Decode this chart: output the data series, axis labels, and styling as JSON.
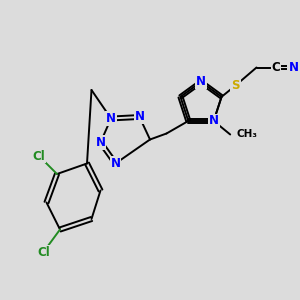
{
  "background_color": "#dcdcdc",
  "atom_colors": {
    "N": "#0000ff",
    "C": "#000000",
    "S": "#ccaa00",
    "Cl": "#228b22",
    "H": "#000000"
  },
  "bond_color": "#000000",
  "bond_lw": 1.4,
  "figsize": [
    3.0,
    3.0
  ],
  "dpi": 100,
  "xlim": [
    0,
    10
  ],
  "ylim": [
    0,
    10
  ]
}
